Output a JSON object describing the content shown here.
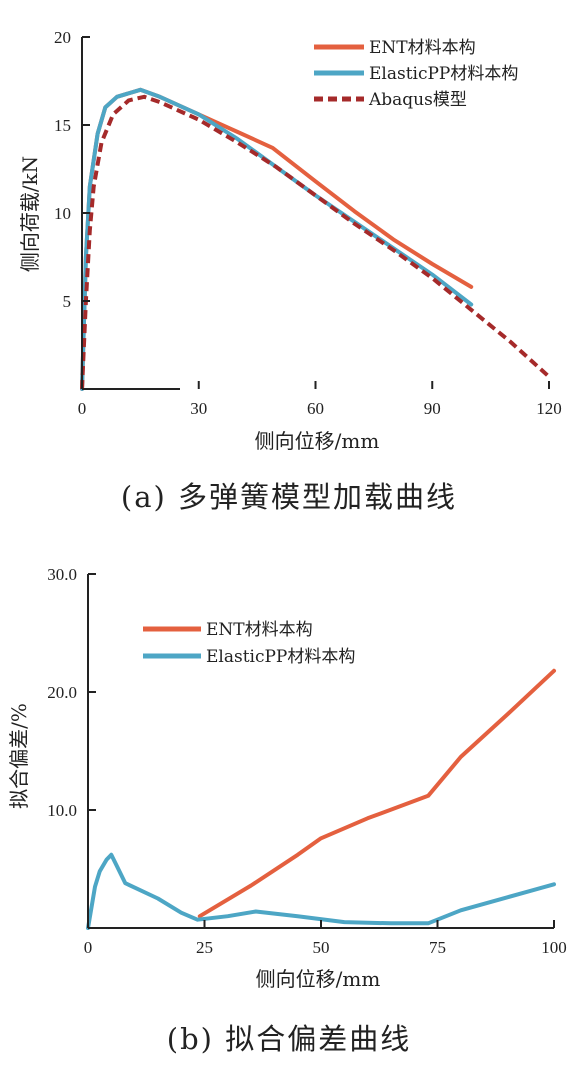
{
  "chart_data": [
    {
      "type": "line",
      "caption": "(a) 多弹簧模型加载曲线",
      "xlabel": "侧向位移/mm",
      "ylabel": "侧向荷载/kN",
      "xlim": [
        0,
        120
      ],
      "ylim": [
        0,
        20
      ],
      "xticks": [
        "0",
        "30",
        "60",
        "90",
        "120"
      ],
      "yticks": [
        "5",
        "10",
        "15",
        "20"
      ],
      "legend_position": "top-right",
      "grid": false,
      "series": [
        {
          "name": "ENT材料本构",
          "color": "#e4603f",
          "style": "solid",
          "x": [
            0,
            1,
            2,
            4,
            6,
            9,
            15,
            20,
            30,
            40,
            49,
            60,
            70,
            80,
            90,
            100
          ],
          "y": [
            0,
            7.5,
            11.5,
            14.5,
            16.0,
            16.6,
            17.0,
            16.6,
            15.6,
            14.6,
            13.7,
            11.8,
            10.1,
            8.5,
            7.1,
            5.8
          ]
        },
        {
          "name": "ElasticPP材料本构",
          "color": "#4da6c5",
          "style": "solid",
          "x": [
            0,
            1,
            2,
            4,
            6,
            9,
            15,
            20,
            30,
            40,
            50,
            60,
            70,
            80,
            90,
            100
          ],
          "y": [
            0,
            7.5,
            11.5,
            14.5,
            16.0,
            16.6,
            17.0,
            16.6,
            15.6,
            14.2,
            12.6,
            11.0,
            9.5,
            8.0,
            6.5,
            4.8
          ]
        },
        {
          "name": "Abaqus模型",
          "color": "#a52a2a",
          "style": "dashed",
          "x": [
            0,
            1,
            2,
            3,
            5,
            8,
            12,
            16,
            20,
            30,
            40,
            50,
            60,
            70,
            80,
            90,
            100,
            110,
            120
          ],
          "y": [
            0,
            5.0,
            9.0,
            11.5,
            14.0,
            15.6,
            16.4,
            16.6,
            16.3,
            15.3,
            14.0,
            12.6,
            11.0,
            9.4,
            7.9,
            6.3,
            4.5,
            2.7,
            0.7
          ]
        }
      ]
    },
    {
      "type": "line",
      "caption": "(b) 拟合偏差曲线",
      "xlabel": "侧向位移/mm",
      "ylabel": "拟合偏差/%",
      "xlim": [
        0,
        100
      ],
      "ylim": [
        0,
        30
      ],
      "xticks": [
        "0",
        "25",
        "50",
        "75",
        "100"
      ],
      "yticks": [
        "10.0",
        "20.0",
        "30.0"
      ],
      "legend_position": "top-left",
      "grid": false,
      "series": [
        {
          "name": "ENT材料本构",
          "color": "#e4603f",
          "style": "solid",
          "x": [
            24,
            35,
            45,
            50,
            60,
            73,
            80,
            90,
            100
          ],
          "y": [
            1.0,
            3.6,
            6.2,
            7.6,
            9.3,
            11.2,
            14.5,
            18.1,
            21.8
          ]
        },
        {
          "name": "ElasticPP材料本构",
          "color": "#4da6c5",
          "style": "solid",
          "x": [
            0,
            1.5,
            2.5,
            4,
            5,
            6,
            8,
            15,
            20,
            23.5,
            30,
            36,
            45,
            55,
            65,
            73,
            80,
            90,
            100
          ],
          "y": [
            0,
            3.5,
            4.8,
            5.8,
            6.2,
            5.4,
            3.8,
            2.5,
            1.3,
            0.7,
            1.0,
            1.4,
            1.0,
            0.5,
            0.4,
            0.4,
            1.5,
            2.6,
            3.7
          ]
        }
      ]
    }
  ]
}
